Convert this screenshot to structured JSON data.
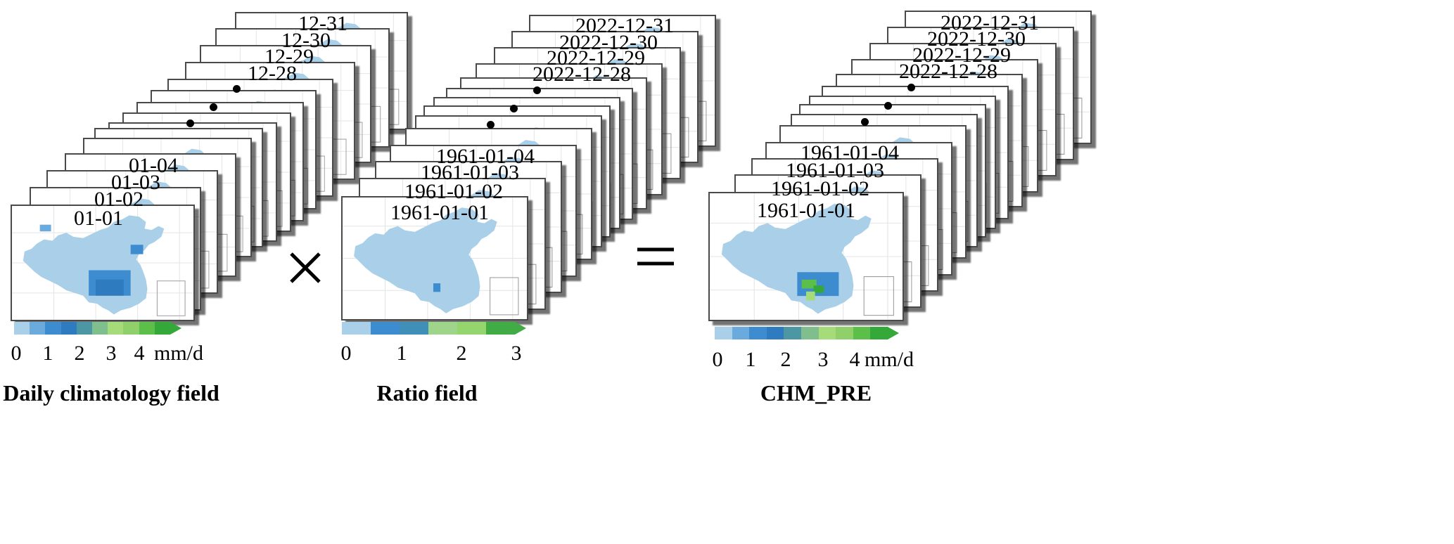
{
  "colors": {
    "ramp": [
      "#a9d0e8",
      "#6aaadc",
      "#3c8ccf",
      "#2e7bbf",
      "#4d97a5",
      "#7fbf8e",
      "#a6db7a",
      "#8fd06a",
      "#5cbf4a",
      "#35a83a"
    ],
    "ratio_ramp": [
      "#a9d0e8",
      "#3c8ccf",
      "#3f8fb8",
      "#9fd58a",
      "#94d56e",
      "#41ab45"
    ],
    "map_base": "#a9d0e8"
  },
  "panels": [
    {
      "id": "climatology",
      "front_labels": [
        "01-01",
        "01-02",
        "01-03",
        "01-04"
      ],
      "back_labels": [
        "12-28",
        "12-29",
        "12-30",
        "12-31"
      ],
      "colorbar_ticks": [
        "0",
        "1",
        "2",
        "3",
        "4"
      ],
      "colorbar_unit": "mm/d",
      "caption": "Daily climatology field"
    },
    {
      "id": "ratio",
      "front_labels": [
        "1961-01-01",
        "1961-01-02",
        "1961-01-03",
        "1961-01-04"
      ],
      "back_labels": [
        "2022-12-28",
        "2022-12-29",
        "2022-12-30",
        "2022-12-31"
      ],
      "colorbar_ticks": [
        "0",
        "1",
        "2",
        "3"
      ],
      "colorbar_unit": "",
      "caption": "Ratio field"
    },
    {
      "id": "chm",
      "front_labels": [
        "1961-01-01",
        "1961-01-02",
        "1961-01-03",
        "1961-01-04"
      ],
      "back_labels": [
        "2022-12-28",
        "2022-12-29",
        "2022-12-30",
        "2022-12-31"
      ],
      "colorbar_ticks": [
        "0",
        "1",
        "2",
        "3",
        "4"
      ],
      "colorbar_unit": "mm/d",
      "caption": "CHM_PRE"
    }
  ],
  "operators": {
    "multiply": "multiply-sign",
    "equals": "equals-sign"
  }
}
